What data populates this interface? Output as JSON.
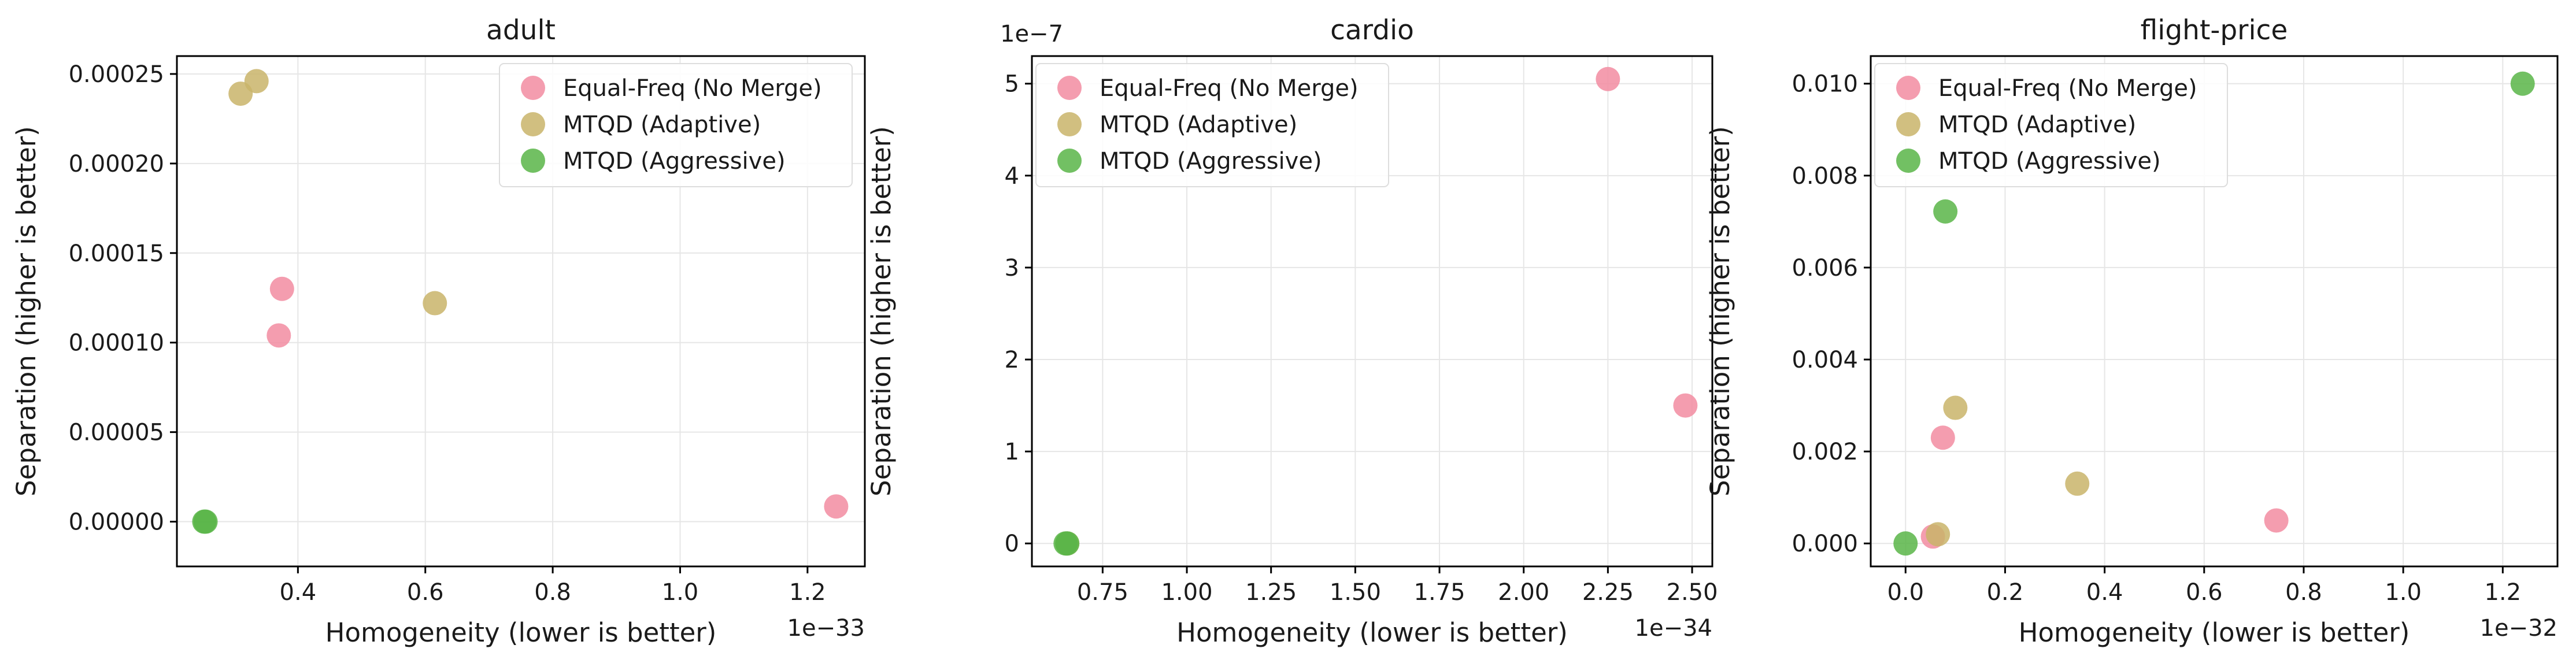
{
  "chart_data": [
    {
      "type": "scatter",
      "title": "adult",
      "xlabel": "Homogeneity (lower is better)",
      "ylabel": "Separation (higher is better)",
      "x_multiplier_label": "1e−33",
      "y_multiplier_label": "",
      "xlim": [
        0.21,
        1.29
      ],
      "ylim": [
        -2.5e-05,
        0.00026
      ],
      "x_ticks": [
        0.4,
        0.6,
        0.8,
        1.0,
        1.2
      ],
      "x_tick_labels": [
        "0.4",
        "0.6",
        "0.8",
        "1.0",
        "1.2"
      ],
      "y_ticks": [
        0,
        5e-05,
        0.0001,
        0.00015,
        0.0002,
        0.00025
      ],
      "y_tick_labels": [
        "0.00000",
        "0.00005",
        "0.00010",
        "0.00015",
        "0.00020",
        "0.00025"
      ],
      "grid": true,
      "legend_position": "top-right",
      "series": [
        {
          "name": "Equal-Freq (No Merge)",
          "color": "#f28ca1",
          "points": [
            [
              0.37,
              0.000104
            ],
            [
              0.375,
              0.00013
            ],
            [
              1.245,
              8.5e-06
            ]
          ]
        },
        {
          "name": "MTQD (Adaptive)",
          "color": "#c9b46a",
          "points": [
            [
              0.31,
              0.000239
            ],
            [
              0.335,
              0.000246
            ],
            [
              0.615,
              0.000122
            ]
          ]
        },
        {
          "name": "MTQD (Aggressive)",
          "color": "#59b548",
          "points": [
            [
              0.255,
              0.0
            ],
            [
              0.253,
              0.0
            ]
          ]
        }
      ]
    },
    {
      "type": "scatter",
      "title": "cardio",
      "xlabel": "Homogeneity (lower is better)",
      "ylabel": "Separation (higher is better)",
      "x_multiplier_label": "1e−34",
      "y_multiplier_label": "1e−7",
      "xlim": [
        0.54,
        2.56
      ],
      "ylim": [
        -0.25,
        5.3
      ],
      "x_ticks": [
        0.75,
        1.0,
        1.25,
        1.5,
        1.75,
        2.0,
        2.25,
        2.5
      ],
      "x_tick_labels": [
        "0.75",
        "1.00",
        "1.25",
        "1.50",
        "1.75",
        "2.00",
        "2.25",
        "2.50"
      ],
      "y_ticks": [
        0,
        1,
        2,
        3,
        4,
        5
      ],
      "y_tick_labels": [
        "0",
        "1",
        "2",
        "3",
        "4",
        "5"
      ],
      "grid": true,
      "legend_position": "top-left",
      "series": [
        {
          "name": "Equal-Freq (No Merge)",
          "color": "#f28ca1",
          "points": [
            [
              2.25,
              5.05
            ],
            [
              2.48,
              1.5
            ]
          ]
        },
        {
          "name": "MTQD (Adaptive)",
          "color": "#c9b46a",
          "points": [
            [
              0.645,
              0.0
            ]
          ]
        },
        {
          "name": "MTQD (Aggressive)",
          "color": "#59b548",
          "points": [
            [
              0.645,
              0.0
            ],
            [
              0.64,
              0.0
            ]
          ]
        }
      ]
    },
    {
      "type": "scatter",
      "title": "flight-price",
      "xlabel": "Homogeneity (lower is better)",
      "ylabel": "Separation (higher is better)",
      "x_multiplier_label": "1e−32",
      "y_multiplier_label": "",
      "xlim": [
        -0.07,
        1.31
      ],
      "ylim": [
        -0.0005,
        0.0106
      ],
      "x_ticks": [
        0.0,
        0.2,
        0.4,
        0.6,
        0.8,
        1.0,
        1.2
      ],
      "x_tick_labels": [
        "0.0",
        "0.2",
        "0.4",
        "0.6",
        "0.8",
        "1.0",
        "1.2"
      ],
      "y_ticks": [
        0,
        0.002,
        0.004,
        0.006,
        0.008,
        0.01
      ],
      "y_tick_labels": [
        "0.000",
        "0.002",
        "0.004",
        "0.006",
        "0.008",
        "0.010"
      ],
      "grid": true,
      "legend_position": "top-left",
      "series": [
        {
          "name": "Equal-Freq (No Merge)",
          "color": "#f28ca1",
          "points": [
            [
              0.055,
              0.00015
            ],
            [
              0.075,
              0.0023
            ],
            [
              0.745,
              0.0005
            ]
          ]
        },
        {
          "name": "MTQD (Adaptive)",
          "color": "#c9b46a",
          "points": [
            [
              0.065,
              0.0002
            ],
            [
              0.1,
              0.00295
            ],
            [
              0.345,
              0.0013
            ]
          ]
        },
        {
          "name": "MTQD (Aggressive)",
          "color": "#59b548",
          "points": [
            [
              0.0,
              0.0
            ],
            [
              0.08,
              0.00722
            ],
            [
              1.24,
              0.01
            ]
          ]
        }
      ]
    }
  ]
}
